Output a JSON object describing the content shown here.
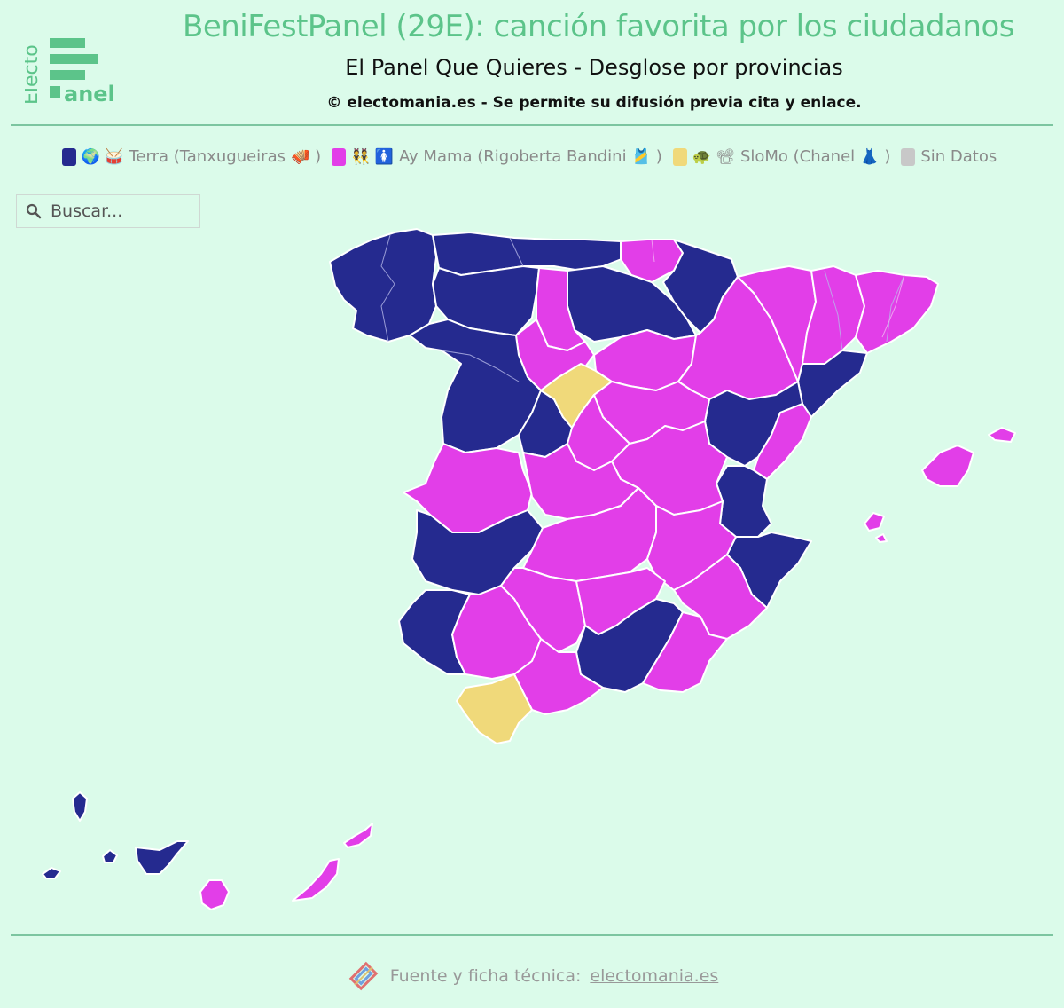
{
  "header": {
    "logo_text_top": "Electo",
    "logo_text_bottom": "anel",
    "title": "BeniFestPanel (29E): canción favorita por los ciudadanos",
    "subtitle": "El Panel Que Quieres - Desglose por provincias",
    "copyright": "© electomania.es - Se permite su difusión previa cita y enlace."
  },
  "legend": {
    "items": [
      {
        "color": "#252a8f",
        "emoji": "🌍 🥁",
        "label": "Terra (Tanxugueiras",
        "label_emoji": "🪗",
        "close": ")"
      },
      {
        "color": "#e23ee8",
        "emoji": "👯 🚺",
        "label": "Ay Mama (Rigoberta Bandini",
        "label_emoji": "🎽",
        "close": ")"
      },
      {
        "color": "#f0d97a",
        "emoji": "🐢 📽",
        "label": "SloMo (Chanel",
        "label_emoji": "👗",
        "close": ")"
      },
      {
        "color": "#c8c8c8",
        "emoji": "",
        "label": "Sin Datos",
        "label_emoji": "",
        "close": ""
      }
    ]
  },
  "search": {
    "placeholder": "Buscar..."
  },
  "colors": {
    "terra": "#252a8f",
    "aymama": "#e23ee8",
    "slomo": "#f0d97a",
    "sindatos": "#c8c8c8",
    "background": "#dbfbea",
    "accent": "#5cc48a"
  },
  "map": {
    "provinces_terra": [
      "Galicia",
      "Asturias",
      "Cantabria",
      "Burgos",
      "La Rioja",
      "Navarra",
      "Zamora",
      "Salamanca",
      "Ávila",
      "Teruel",
      "Tarragona",
      "Valencia",
      "Alicante",
      "Cáceres",
      "Badajoz",
      "Huelva",
      "Granada",
      "Canarias occidentales"
    ],
    "provinces_aymama": [
      "País Vasco",
      "Palencia",
      "Valladolid",
      "Soria",
      "Zaragoza",
      "Huesca",
      "Lleida",
      "Barcelona",
      "Girona",
      "Castellón",
      "Madrid",
      "Guadalajara",
      "Cuenca",
      "Toledo",
      "Ciudad Real",
      "Albacete",
      "Murcia",
      "Córdoba",
      "Jaén",
      "Sevilla",
      "Málaga",
      "Almería",
      "Baleares",
      "Las Palmas"
    ],
    "provinces_slomo": [
      "Segovia",
      "Cádiz"
    ]
  },
  "footer": {
    "text": "Fuente y ficha técnica:",
    "link": "electomania.es"
  }
}
